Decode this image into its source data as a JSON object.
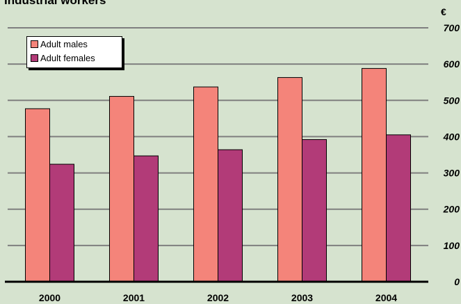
{
  "header": {
    "title": "Industrial workers",
    "unit": "€"
  },
  "chart_data": {
    "type": "bar",
    "title": "Industrial workers",
    "ylabel": "€",
    "categories": [
      "2000",
      "2001",
      "2002",
      "2003",
      "2004"
    ],
    "series": [
      {
        "name": "Adult males",
        "color": "#f4847a",
        "values": [
          477,
          511,
          537,
          563,
          588
        ]
      },
      {
        "name": "Adult females",
        "color": "#b23b78",
        "values": [
          324,
          347,
          364,
          392,
          405
        ]
      }
    ],
    "yticks": [
      0,
      100,
      200,
      300,
      400,
      500,
      600,
      700
    ],
    "ylim": [
      0,
      700
    ],
    "grid": true,
    "legend_position": "top-left",
    "axis_side": "right"
  }
}
